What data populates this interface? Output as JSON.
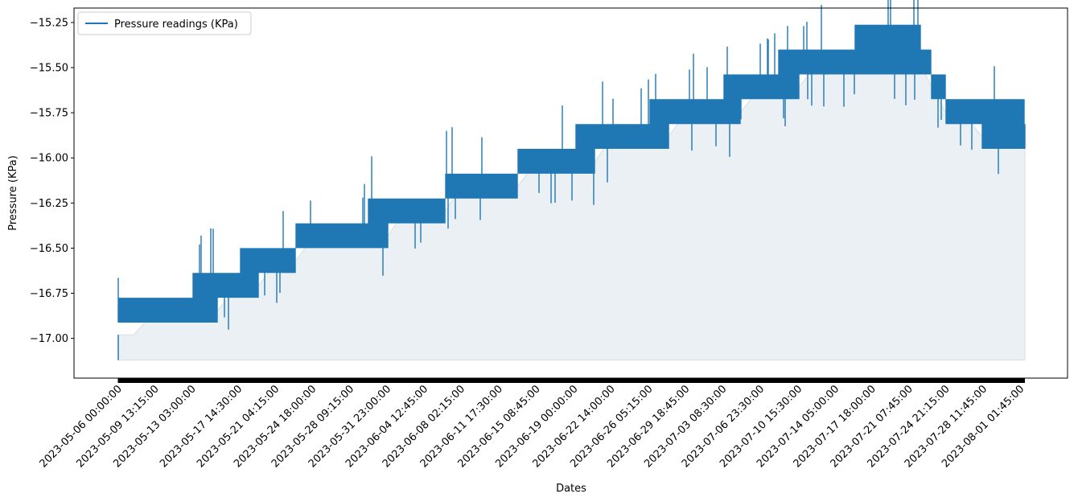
{
  "chart_data": {
    "type": "line",
    "title": "",
    "xlabel": "Dates",
    "ylabel": "Pressure (KPa)",
    "ylim": [
      -17.22,
      -15.17
    ],
    "yticks": [
      "−15.25",
      "−15.50",
      "−15.75",
      "−16.00",
      "−16.25",
      "−16.50",
      "−16.75",
      "−17.00"
    ],
    "ytick_values": [
      -15.25,
      -15.5,
      -15.75,
      -16.0,
      -16.25,
      -16.5,
      -16.75,
      -17.0
    ],
    "xtick_labels": [
      "2023-05-06 00:00:00",
      "2023-05-09 13:15:00",
      "2023-05-13 03:00:00",
      "2023-05-17 14:30:00",
      "2023-05-21 04:15:00",
      "2023-05-24 18:00:00",
      "2023-05-28 09:15:00",
      "2023-05-31 23:00:00",
      "2023-06-04 12:45:00",
      "2023-06-08 02:15:00",
      "2023-06-11 17:30:00",
      "2023-06-15 08:45:00",
      "2023-06-19 00:00:00",
      "2023-06-22 14:00:00",
      "2023-06-26 05:15:00",
      "2023-06-29 18:45:00",
      "2023-07-03 08:30:00",
      "2023-07-06 23:30:00",
      "2023-07-10 15:30:00",
      "2023-07-14 05:00:00",
      "2023-07-17 18:00:00",
      "2023-07-21 07:45:00",
      "2023-07-24 21:15:00",
      "2023-07-28 11:45:00",
      "2023-08-01 01:45:00"
    ],
    "grid": false,
    "legend_position": "top-left",
    "series": [
      {
        "name": "Pressure readings (KPa)",
        "color": "#1f77b4",
        "fill_color": "#e3ebef",
        "sampled_points": {
          "x": [
            "2023-05-06 00:00:00",
            "2023-05-07 12:00:00",
            "2023-05-09 13:15:00",
            "2023-05-11 12:00:00",
            "2023-05-13 03:00:00",
            "2023-05-15 12:00:00",
            "2023-05-17 14:30:00",
            "2023-05-19 12:00:00",
            "2023-05-21 04:15:00",
            "2023-05-23 00:00:00",
            "2023-05-24 18:00:00",
            "2023-05-26 12:00:00",
            "2023-05-28 09:15:00",
            "2023-05-30 00:00:00",
            "2023-05-31 23:00:00",
            "2023-06-02 12:00:00",
            "2023-06-04 12:45:00",
            "2023-06-06 12:00:00",
            "2023-06-08 02:15:00",
            "2023-06-10 00:00:00",
            "2023-06-11 17:30:00",
            "2023-06-13 12:00:00",
            "2023-06-15 08:45:00",
            "2023-06-17 00:00:00",
            "2023-06-19 00:00:00",
            "2023-06-21 00:00:00",
            "2023-06-22 14:00:00",
            "2023-06-24 12:00:00",
            "2023-06-26 05:15:00",
            "2023-06-28 00:00:00",
            "2023-06-29 18:45:00",
            "2023-07-01 12:00:00",
            "2023-07-03 08:30:00",
            "2023-07-05 00:00:00",
            "2023-07-06 23:30:00",
            "2023-07-08 12:00:00",
            "2023-07-10 15:30:00",
            "2023-07-12 12:00:00",
            "2023-07-14 05:00:00",
            "2023-07-16 00:00:00",
            "2023-07-17 18:00:00",
            "2023-07-19 12:00:00",
            "2023-07-21 07:45:00",
            "2023-07-22 12:00:00",
            "2023-07-23 12:00:00",
            "2023-07-24 21:15:00",
            "2023-07-26 12:00:00",
            "2023-07-28 11:45:00",
            "2023-07-30 12:00:00",
            "2023-08-01 01:45:00",
            "2023-08-01 12:00:00"
          ],
          "y_low": [
            -16.98,
            -16.98,
            -16.85,
            -16.85,
            -16.85,
            -16.85,
            -16.71,
            -16.71,
            -16.58,
            -16.58,
            -16.44,
            -16.44,
            -16.44,
            -16.44,
            -16.44,
            -16.3,
            -16.3,
            -16.3,
            -16.16,
            -16.16,
            -16.16,
            -16.16,
            -16.02,
            -16.02,
            -16.02,
            -16.02,
            -15.89,
            -15.89,
            -15.89,
            -15.89,
            -15.75,
            -15.75,
            -15.75,
            -15.75,
            -15.61,
            -15.61,
            -15.61,
            -15.48,
            -15.48,
            -15.48,
            -15.48,
            -15.48,
            -15.48,
            -15.48,
            -15.61,
            -15.75,
            -15.75,
            -15.89,
            -15.89,
            -15.89,
            -15.89
          ],
          "y_high": [
            -16.85,
            -16.71,
            -16.71,
            -16.71,
            -16.71,
            -16.58,
            -16.58,
            -16.44,
            -16.44,
            -16.44,
            -16.3,
            -16.3,
            -16.3,
            -16.3,
            -16.16,
            -16.16,
            -16.16,
            -16.16,
            -16.02,
            -16.02,
            -16.02,
            -16.02,
            -15.89,
            -15.89,
            -15.89,
            -15.75,
            -15.75,
            -15.75,
            -15.75,
            -15.61,
            -15.61,
            -15.61,
            -15.61,
            -15.48,
            -15.48,
            -15.48,
            -15.34,
            -15.34,
            -15.34,
            -15.34,
            -15.21,
            -15.21,
            -15.21,
            -15.34,
            -15.48,
            -15.61,
            -15.61,
            -15.61,
            -15.61,
            -15.61,
            -15.75
          ]
        },
        "min": -17.12,
        "max": -15.21
      }
    ]
  }
}
